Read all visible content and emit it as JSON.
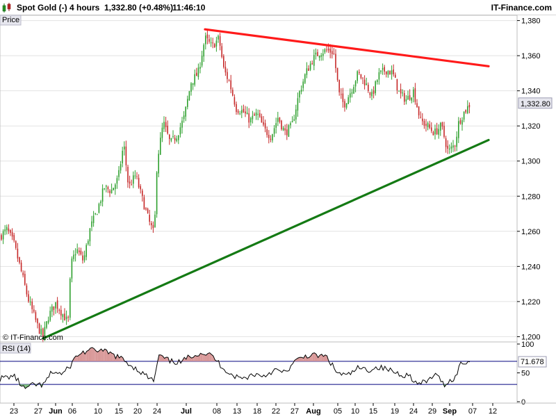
{
  "header": {
    "instrument": "Spot Gold (-)",
    "timeframe": "4 hours",
    "quote": "1,332.80 (+0.48%)",
    "time": "11:46:10",
    "brand": "IT-Finance.com",
    "icon": "candlestick-chart-icon"
  },
  "price_panel": {
    "label": "Price",
    "watermark": "© IT-Finance.com",
    "last_price_label": "1,332.80"
  },
  "rsi_panel": {
    "label": "RSI (14)",
    "last_value_label": "71.678",
    "ticks": [
      "100",
      "50",
      "0"
    ]
  },
  "colors": {
    "up_candle": "#2ea02e",
    "down_candle": "#c62828",
    "resistance_line": "#ff1a1a",
    "support_line": "#147a14",
    "rsi_band": "#00007f",
    "rsi_overbought_fill": "#d99999",
    "rsi_oversold_fill": "#7fbf7f",
    "grid": "#e2e2e2"
  },
  "chart_data": {
    "type": "candlestick",
    "title": "Spot Gold (-)",
    "y_ticks": [
      "1,380",
      "1,360",
      "1,340",
      "1,320",
      "1,300",
      "1,280",
      "1,260",
      "1,240",
      "1,220",
      "1,200"
    ],
    "y_tick_values": [
      1380,
      1360,
      1340,
      1320,
      1300,
      1280,
      1260,
      1240,
      1220,
      1200
    ],
    "ylim": [
      1197,
      1383
    ],
    "x_tick_labels": [
      "23",
      "27",
      "Jun",
      "06",
      "10",
      "15",
      "20",
      "24",
      "Jul",
      "08",
      "13",
      "18",
      "22",
      "27",
      "Aug",
      "05",
      "10",
      "15",
      "19",
      "24",
      "29",
      "Sep",
      "07",
      "12"
    ],
    "x_bold_labels": [
      "Jun",
      "Jul",
      "Aug",
      "Sep"
    ],
    "last_price": 1332.8,
    "trendlines": [
      {
        "name": "resistance",
        "from": [
          "Jul 04",
          1375
        ],
        "to": [
          "Sep 10",
          1354
        ]
      },
      {
        "name": "support",
        "from": [
          "May 28",
          1199
        ],
        "to": [
          "Sep 10",
          1312
        ]
      }
    ],
    "price_path": [
      {
        "x": 0,
        "y": 1257
      },
      {
        "x": 10,
        "y": 1261
      },
      {
        "x": 20,
        "y": 1253
      },
      {
        "x": 30,
        "y": 1238
      },
      {
        "x": 40,
        "y": 1222
      },
      {
        "x": 55,
        "y": 1205
      },
      {
        "x": 62,
        "y": 1200
      },
      {
        "x": 70,
        "y": 1212
      },
      {
        "x": 80,
        "y": 1219
      },
      {
        "x": 90,
        "y": 1213
      },
      {
        "x": 98,
        "y": 1208
      },
      {
        "x": 102,
        "y": 1241
      },
      {
        "x": 110,
        "y": 1250
      },
      {
        "x": 120,
        "y": 1243
      },
      {
        "x": 130,
        "y": 1262
      },
      {
        "x": 140,
        "y": 1272
      },
      {
        "x": 150,
        "y": 1285
      },
      {
        "x": 160,
        "y": 1283
      },
      {
        "x": 170,
        "y": 1290
      },
      {
        "x": 178,
        "y": 1310
      },
      {
        "x": 185,
        "y": 1285
      },
      {
        "x": 195,
        "y": 1292
      },
      {
        "x": 205,
        "y": 1278
      },
      {
        "x": 215,
        "y": 1265
      },
      {
        "x": 222,
        "y": 1258
      },
      {
        "x": 226,
        "y": 1300
      },
      {
        "x": 235,
        "y": 1322
      },
      {
        "x": 245,
        "y": 1310
      },
      {
        "x": 255,
        "y": 1315
      },
      {
        "x": 265,
        "y": 1325
      },
      {
        "x": 275,
        "y": 1345
      },
      {
        "x": 285,
        "y": 1350
      },
      {
        "x": 295,
        "y": 1370
      },
      {
        "x": 305,
        "y": 1365
      },
      {
        "x": 315,
        "y": 1370
      },
      {
        "x": 322,
        "y": 1352
      },
      {
        "x": 330,
        "y": 1345
      },
      {
        "x": 340,
        "y": 1330
      },
      {
        "x": 350,
        "y": 1328
      },
      {
        "x": 360,
        "y": 1323
      },
      {
        "x": 370,
        "y": 1327
      },
      {
        "x": 380,
        "y": 1318
      },
      {
        "x": 390,
        "y": 1314
      },
      {
        "x": 400,
        "y": 1325
      },
      {
        "x": 410,
        "y": 1316
      },
      {
        "x": 420,
        "y": 1320
      },
      {
        "x": 430,
        "y": 1338
      },
      {
        "x": 440,
        "y": 1350
      },
      {
        "x": 450,
        "y": 1358
      },
      {
        "x": 460,
        "y": 1362
      },
      {
        "x": 470,
        "y": 1363
      },
      {
        "x": 480,
        "y": 1362
      },
      {
        "x": 488,
        "y": 1338
      },
      {
        "x": 495,
        "y": 1332
      },
      {
        "x": 505,
        "y": 1340
      },
      {
        "x": 515,
        "y": 1350
      },
      {
        "x": 525,
        "y": 1345
      },
      {
        "x": 535,
        "y": 1337
      },
      {
        "x": 545,
        "y": 1349
      },
      {
        "x": 555,
        "y": 1352
      },
      {
        "x": 565,
        "y": 1350
      },
      {
        "x": 575,
        "y": 1338
      },
      {
        "x": 585,
        "y": 1335
      },
      {
        "x": 595,
        "y": 1340
      },
      {
        "x": 605,
        "y": 1323
      },
      {
        "x": 615,
        "y": 1320
      },
      {
        "x": 625,
        "y": 1316
      },
      {
        "x": 635,
        "y": 1320
      },
      {
        "x": 645,
        "y": 1305
      },
      {
        "x": 655,
        "y": 1310
      },
      {
        "x": 660,
        "y": 1322
      },
      {
        "x": 668,
        "y": 1328
      },
      {
        "x": 677,
        "y": 1332.8
      }
    ],
    "rsi_path": [
      {
        "x": 0,
        "y": 40
      },
      {
        "x": 20,
        "y": 45
      },
      {
        "x": 35,
        "y": 22
      },
      {
        "x": 50,
        "y": 30
      },
      {
        "x": 62,
        "y": 28
      },
      {
        "x": 75,
        "y": 52
      },
      {
        "x": 90,
        "y": 48
      },
      {
        "x": 100,
        "y": 60
      },
      {
        "x": 110,
        "y": 80
      },
      {
        "x": 125,
        "y": 88
      },
      {
        "x": 140,
        "y": 90
      },
      {
        "x": 155,
        "y": 85
      },
      {
        "x": 170,
        "y": 78
      },
      {
        "x": 180,
        "y": 70
      },
      {
        "x": 195,
        "y": 58
      },
      {
        "x": 210,
        "y": 45
      },
      {
        "x": 222,
        "y": 35
      },
      {
        "x": 228,
        "y": 80
      },
      {
        "x": 245,
        "y": 70
      },
      {
        "x": 260,
        "y": 68
      },
      {
        "x": 275,
        "y": 80
      },
      {
        "x": 290,
        "y": 85
      },
      {
        "x": 305,
        "y": 80
      },
      {
        "x": 320,
        "y": 60
      },
      {
        "x": 335,
        "y": 45
      },
      {
        "x": 350,
        "y": 40
      },
      {
        "x": 365,
        "y": 48
      },
      {
        "x": 380,
        "y": 45
      },
      {
        "x": 395,
        "y": 55
      },
      {
        "x": 410,
        "y": 50
      },
      {
        "x": 425,
        "y": 70
      },
      {
        "x": 440,
        "y": 80
      },
      {
        "x": 455,
        "y": 80
      },
      {
        "x": 470,
        "y": 78
      },
      {
        "x": 485,
        "y": 50
      },
      {
        "x": 500,
        "y": 45
      },
      {
        "x": 515,
        "y": 58
      },
      {
        "x": 530,
        "y": 55
      },
      {
        "x": 545,
        "y": 60
      },
      {
        "x": 560,
        "y": 55
      },
      {
        "x": 575,
        "y": 48
      },
      {
        "x": 590,
        "y": 45
      },
      {
        "x": 600,
        "y": 30
      },
      {
        "x": 615,
        "y": 35
      },
      {
        "x": 625,
        "y": 48
      },
      {
        "x": 640,
        "y": 30
      },
      {
        "x": 655,
        "y": 42
      },
      {
        "x": 662,
        "y": 65
      },
      {
        "x": 670,
        "y": 68
      },
      {
        "x": 677,
        "y": 71.678
      }
    ]
  }
}
